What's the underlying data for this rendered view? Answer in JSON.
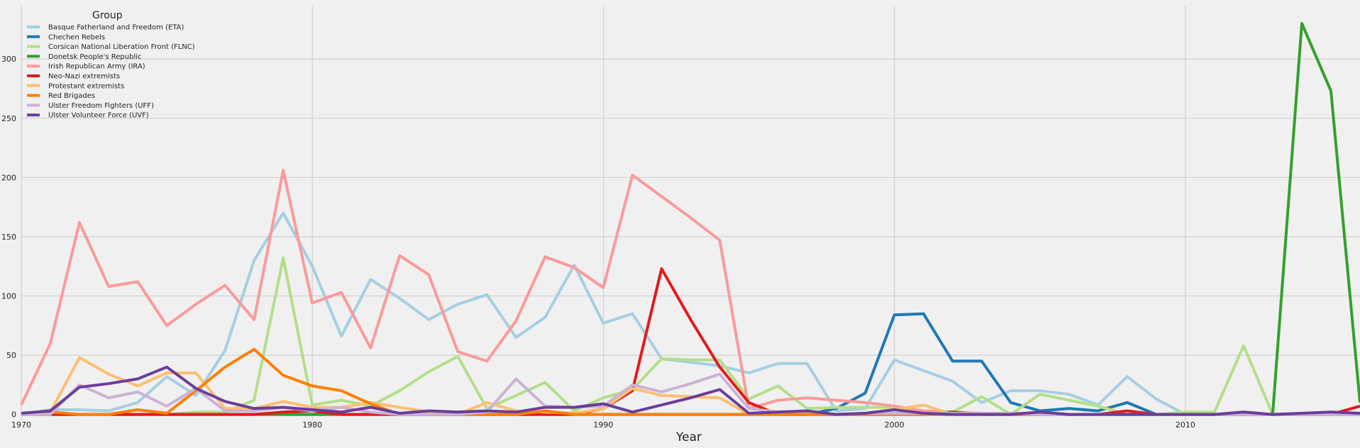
{
  "chart_data": {
    "type": "line",
    "xlabel": "Year",
    "ylabel": "",
    "xlim": [
      1970,
      2016
    ],
    "ylim": [
      -5,
      345
    ],
    "x_ticks": [
      1970,
      1980,
      1990,
      2000,
      2010
    ],
    "y_ticks": [
      0,
      50,
      100,
      150,
      200,
      250,
      300
    ],
    "grid": true,
    "legend": {
      "title": "Group",
      "placement": "top-left"
    },
    "x": [
      1970,
      1971,
      1972,
      1973,
      1974,
      1975,
      1976,
      1977,
      1978,
      1979,
      1980,
      1981,
      1982,
      1983,
      1984,
      1985,
      1986,
      1987,
      1988,
      1989,
      1990,
      1991,
      1992,
      1993,
      1994,
      1995,
      1996,
      1997,
      1998,
      1999,
      2000,
      2001,
      2002,
      2003,
      2004,
      2005,
      2006,
      2007,
      2008,
      2009,
      2010,
      2011,
      2012,
      2013,
      2014,
      2015,
      2016
    ],
    "series": [
      {
        "name": "Basque Fatherland and Freedom (ETA)",
        "color": "#a6cee3",
        "values": [
          0,
          4,
          4,
          3,
          10,
          32,
          16,
          54,
          130,
          170,
          125,
          66,
          114,
          98,
          80,
          93,
          101,
          65,
          82,
          126,
          77,
          85,
          47,
          44,
          41,
          35,
          43,
          43,
          3,
          5,
          46,
          37,
          28,
          10,
          20,
          20,
          17,
          8,
          32,
          13,
          0,
          0,
          0,
          0,
          0,
          0,
          0
        ]
      },
      {
        "name": "Chechen Rebels",
        "color": "#1f78b4",
        "values": [
          0,
          0,
          0,
          0,
          0,
          0,
          0,
          0,
          0,
          0,
          0,
          0,
          0,
          0,
          0,
          0,
          0,
          0,
          0,
          0,
          0,
          0,
          0,
          0,
          0,
          0,
          0,
          0,
          5,
          18,
          84,
          85,
          45,
          45,
          10,
          3,
          5,
          3,
          10,
          0,
          0,
          0,
          0,
          0,
          0,
          0,
          0
        ]
      },
      {
        "name": "Corsican National Liberation Front (FLNC)",
        "color": "#b2df8a",
        "values": [
          0,
          0,
          0,
          0,
          0,
          0,
          2,
          2,
          12,
          132,
          8,
          12,
          7,
          20,
          36,
          49,
          5,
          16,
          27,
          3,
          14,
          21,
          47,
          46,
          46,
          13,
          24,
          5,
          6,
          6,
          6,
          3,
          2,
          15,
          0,
          17,
          12,
          7,
          0,
          0,
          2,
          2,
          58,
          0,
          0,
          0,
          0
        ]
      },
      {
        "name": "Donetsk People's Republic",
        "color": "#33a02c",
        "values": [
          0,
          0,
          0,
          0,
          0,
          0,
          0,
          0,
          0,
          0,
          0,
          0,
          0,
          0,
          0,
          0,
          0,
          0,
          0,
          0,
          0,
          0,
          0,
          0,
          0,
          0,
          0,
          0,
          0,
          0,
          0,
          0,
          0,
          0,
          0,
          0,
          0,
          0,
          0,
          0,
          0,
          0,
          0,
          0,
          330,
          273,
          10
        ]
      },
      {
        "name": "Irish Republican Army (IRA)",
        "color": "#fb9a99",
        "values": [
          8,
          60,
          162,
          108,
          112,
          75,
          93,
          109,
          80,
          206,
          94,
          103,
          56,
          134,
          118,
          53,
          45,
          79,
          133,
          124,
          107,
          202,
          184,
          166,
          147,
          5,
          12,
          14,
          12,
          10,
          7,
          3,
          2,
          1,
          1,
          1,
          0,
          0,
          0,
          0,
          0,
          0,
          0,
          0,
          0,
          0,
          0
        ]
      },
      {
        "name": "Neo-Nazi extremists",
        "color": "#e31a1c",
        "values": [
          0,
          0,
          0,
          0,
          0,
          0,
          0,
          0,
          0,
          2,
          3,
          0,
          0,
          0,
          0,
          0,
          0,
          0,
          0,
          0,
          5,
          20,
          123,
          80,
          40,
          10,
          0,
          0,
          0,
          0,
          0,
          0,
          2,
          0,
          0,
          0,
          0,
          0,
          3,
          0,
          0,
          0,
          0,
          0,
          0,
          0,
          7
        ]
      },
      {
        "name": "Protestant extremists",
        "color": "#fdbf6f",
        "values": [
          0,
          2,
          48,
          34,
          24,
          35,
          35,
          5,
          5,
          11,
          6,
          6,
          10,
          6,
          2,
          0,
          10,
          3,
          2,
          1,
          5,
          22,
          16,
          15,
          14,
          0,
          0,
          2,
          0,
          1,
          4,
          8,
          0,
          0,
          0,
          0,
          0,
          0,
          0,
          0,
          0,
          0,
          0,
          0,
          0,
          0,
          0
        ]
      },
      {
        "name": "Red Brigades",
        "color": "#ff7f00",
        "values": [
          0,
          2,
          0,
          0,
          4,
          1,
          20,
          40,
          55,
          33,
          24,
          20,
          9,
          0,
          0,
          0,
          0,
          0,
          3,
          0,
          0,
          0,
          0,
          0,
          0,
          0,
          0,
          0,
          0,
          0,
          0,
          0,
          0,
          0,
          0,
          0,
          0,
          0,
          0,
          0,
          0,
          0,
          0,
          0,
          0,
          0,
          0
        ]
      },
      {
        "name": "Ulster Freedom Fighters (UFF)",
        "color": "#cab2d6",
        "values": [
          0,
          0,
          25,
          14,
          19,
          7,
          22,
          3,
          3,
          6,
          3,
          6,
          2,
          0,
          0,
          0,
          2,
          30,
          7,
          6,
          7,
          25,
          19,
          26,
          34,
          5,
          2,
          3,
          0,
          1,
          1,
          1,
          1,
          1,
          1,
          0,
          0,
          0,
          0,
          0,
          0,
          0,
          0,
          0,
          0,
          0,
          0
        ]
      },
      {
        "name": "Ulster Volunteer Force (UVF)",
        "color": "#6a3d9a",
        "values": [
          1,
          3,
          23,
          26,
          30,
          40,
          22,
          11,
          5,
          6,
          4,
          2,
          6,
          1,
          3,
          2,
          3,
          2,
          6,
          6,
          9,
          2,
          8,
          14,
          21,
          1,
          2,
          3,
          0,
          1,
          4,
          1,
          0,
          0,
          0,
          2,
          0,
          0,
          0,
          0,
          0,
          0,
          2,
          0,
          1,
          2,
          1
        ]
      }
    ]
  }
}
